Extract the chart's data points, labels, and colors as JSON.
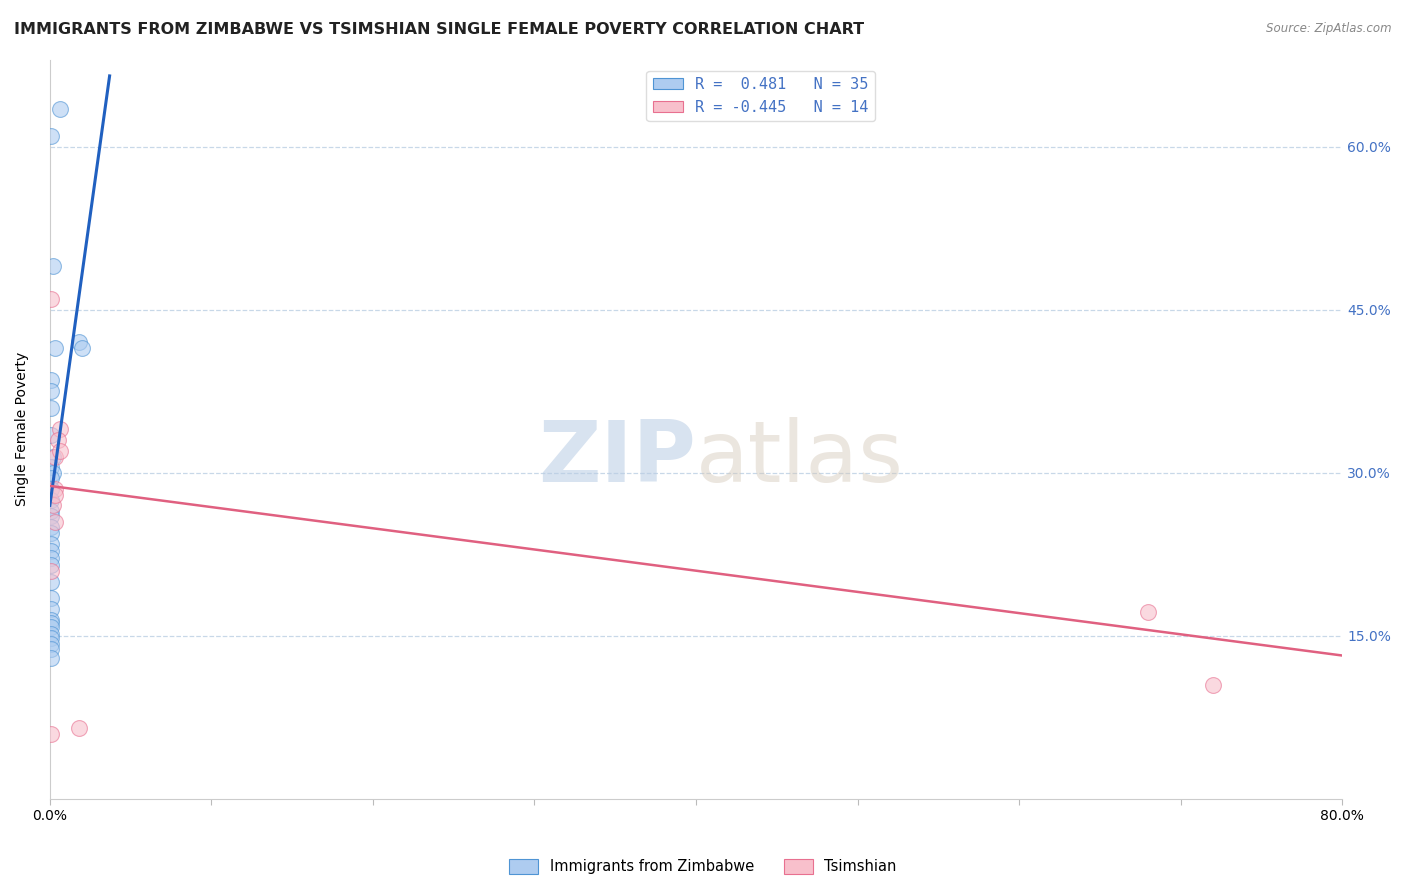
{
  "title": "IMMIGRANTS FROM ZIMBABWE VS TSIMSHIAN SINGLE FEMALE POVERTY CORRELATION CHART",
  "source": "Source: ZipAtlas.com",
  "ylabel": "Single Female Poverty",
  "xlim": [
    0.0,
    0.8
  ],
  "ylim": [
    0.0,
    0.68
  ],
  "xticks": [
    0.0,
    0.1,
    0.2,
    0.3,
    0.4,
    0.5,
    0.6,
    0.7,
    0.8
  ],
  "xticklabels": [
    "0.0%",
    "",
    "",
    "",
    "",
    "",
    "",
    "",
    "80.0%"
  ],
  "yticks": [
    0.15,
    0.3,
    0.45,
    0.6
  ],
  "yticklabels": [
    "15.0%",
    "30.0%",
    "45.0%",
    "60.0%"
  ],
  "blue_R": 0.481,
  "blue_N": 35,
  "pink_R": -0.445,
  "pink_N": 14,
  "blue_fill_color": "#aeccf0",
  "pink_fill_color": "#f8c0cc",
  "blue_edge_color": "#4f94d4",
  "pink_edge_color": "#e87090",
  "blue_line_color": "#2060c0",
  "pink_line_color": "#e06080",
  "blue_scatter_x": [
    0.001,
    0.006,
    0.002,
    0.003,
    0.001,
    0.001,
    0.001,
    0.001,
    0.002,
    0.001,
    0.002,
    0.001,
    0.001,
    0.001,
    0.001,
    0.001,
    0.001,
    0.001,
    0.001,
    0.001,
    0.001,
    0.001,
    0.001,
    0.001,
    0.001,
    0.001,
    0.001,
    0.001,
    0.001,
    0.001,
    0.001,
    0.001,
    0.001,
    0.018,
    0.02
  ],
  "blue_scatter_y": [
    0.61,
    0.635,
    0.49,
    0.415,
    0.385,
    0.375,
    0.36,
    0.335,
    0.315,
    0.305,
    0.3,
    0.295,
    0.285,
    0.275,
    0.265,
    0.26,
    0.25,
    0.245,
    0.235,
    0.228,
    0.222,
    0.215,
    0.2,
    0.185,
    0.175,
    0.165,
    0.162,
    0.158,
    0.152,
    0.148,
    0.143,
    0.138,
    0.13,
    0.42,
    0.415
  ],
  "pink_scatter_x": [
    0.001,
    0.003,
    0.006,
    0.005,
    0.003,
    0.006,
    0.002,
    0.003,
    0.003,
    0.001,
    0.001,
    0.68,
    0.72,
    0.018
  ],
  "pink_scatter_y": [
    0.46,
    0.315,
    0.34,
    0.33,
    0.285,
    0.32,
    0.27,
    0.28,
    0.255,
    0.21,
    0.06,
    0.172,
    0.105,
    0.065
  ],
  "blue_line_x": [
    0.0,
    0.037
  ],
  "blue_line_y": [
    0.27,
    0.665
  ],
  "pink_line_x": [
    0.0,
    0.8
  ],
  "pink_line_y": [
    0.288,
    0.132
  ],
  "watermark_zip": "ZIP",
  "watermark_atlas": "atlas",
  "legend_label_blue": "Immigrants from Zimbabwe",
  "legend_label_pink": "Tsimshian",
  "background_color": "#ffffff",
  "grid_color": "#c8d8e8",
  "title_fontsize": 11.5,
  "axis_label_fontsize": 10,
  "tick_fontsize": 10,
  "right_tick_color": "#4472c4",
  "figsize": [
    14.06,
    8.92
  ]
}
